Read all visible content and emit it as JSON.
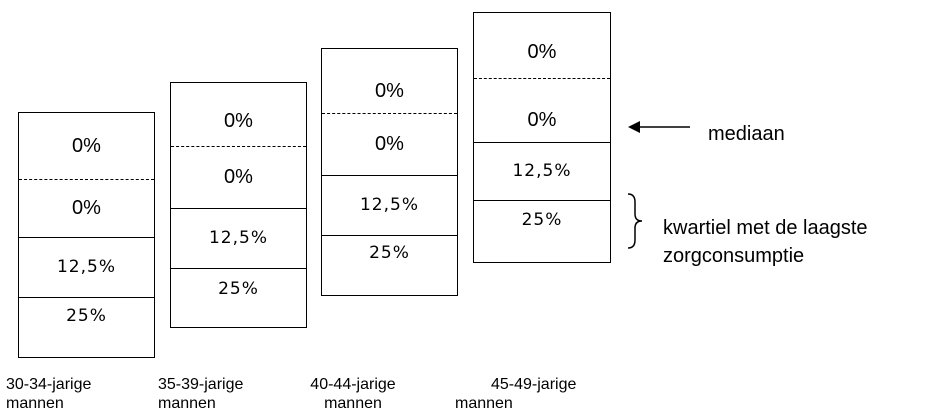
{
  "groups": [
    {
      "segments": [
        "0%",
        "0%",
        "12,5%",
        "25%"
      ],
      "label_line1": "30-34-jarige",
      "label_line2": "mannen"
    },
    {
      "segments": [
        "0%",
        "0%",
        "12,5%",
        "25%"
      ],
      "label_line1": "35-39-jarige",
      "label_line2": "mannen"
    },
    {
      "segments": [
        "0%",
        "0%",
        "12,5%",
        "25%"
      ],
      "label_line1": "40-44-jarige",
      "label_line2": "mannen"
    },
    {
      "segments": [
        "0%",
        "0%",
        "12,5%",
        "25%"
      ],
      "label_line1": "45-49-jarige",
      "label_line2": "mannen"
    }
  ],
  "legend": {
    "median_label": "mediaan",
    "quartile_label_line1": "kwartiel met de laagste",
    "quartile_label_line2": "zorgconsumptie"
  }
}
